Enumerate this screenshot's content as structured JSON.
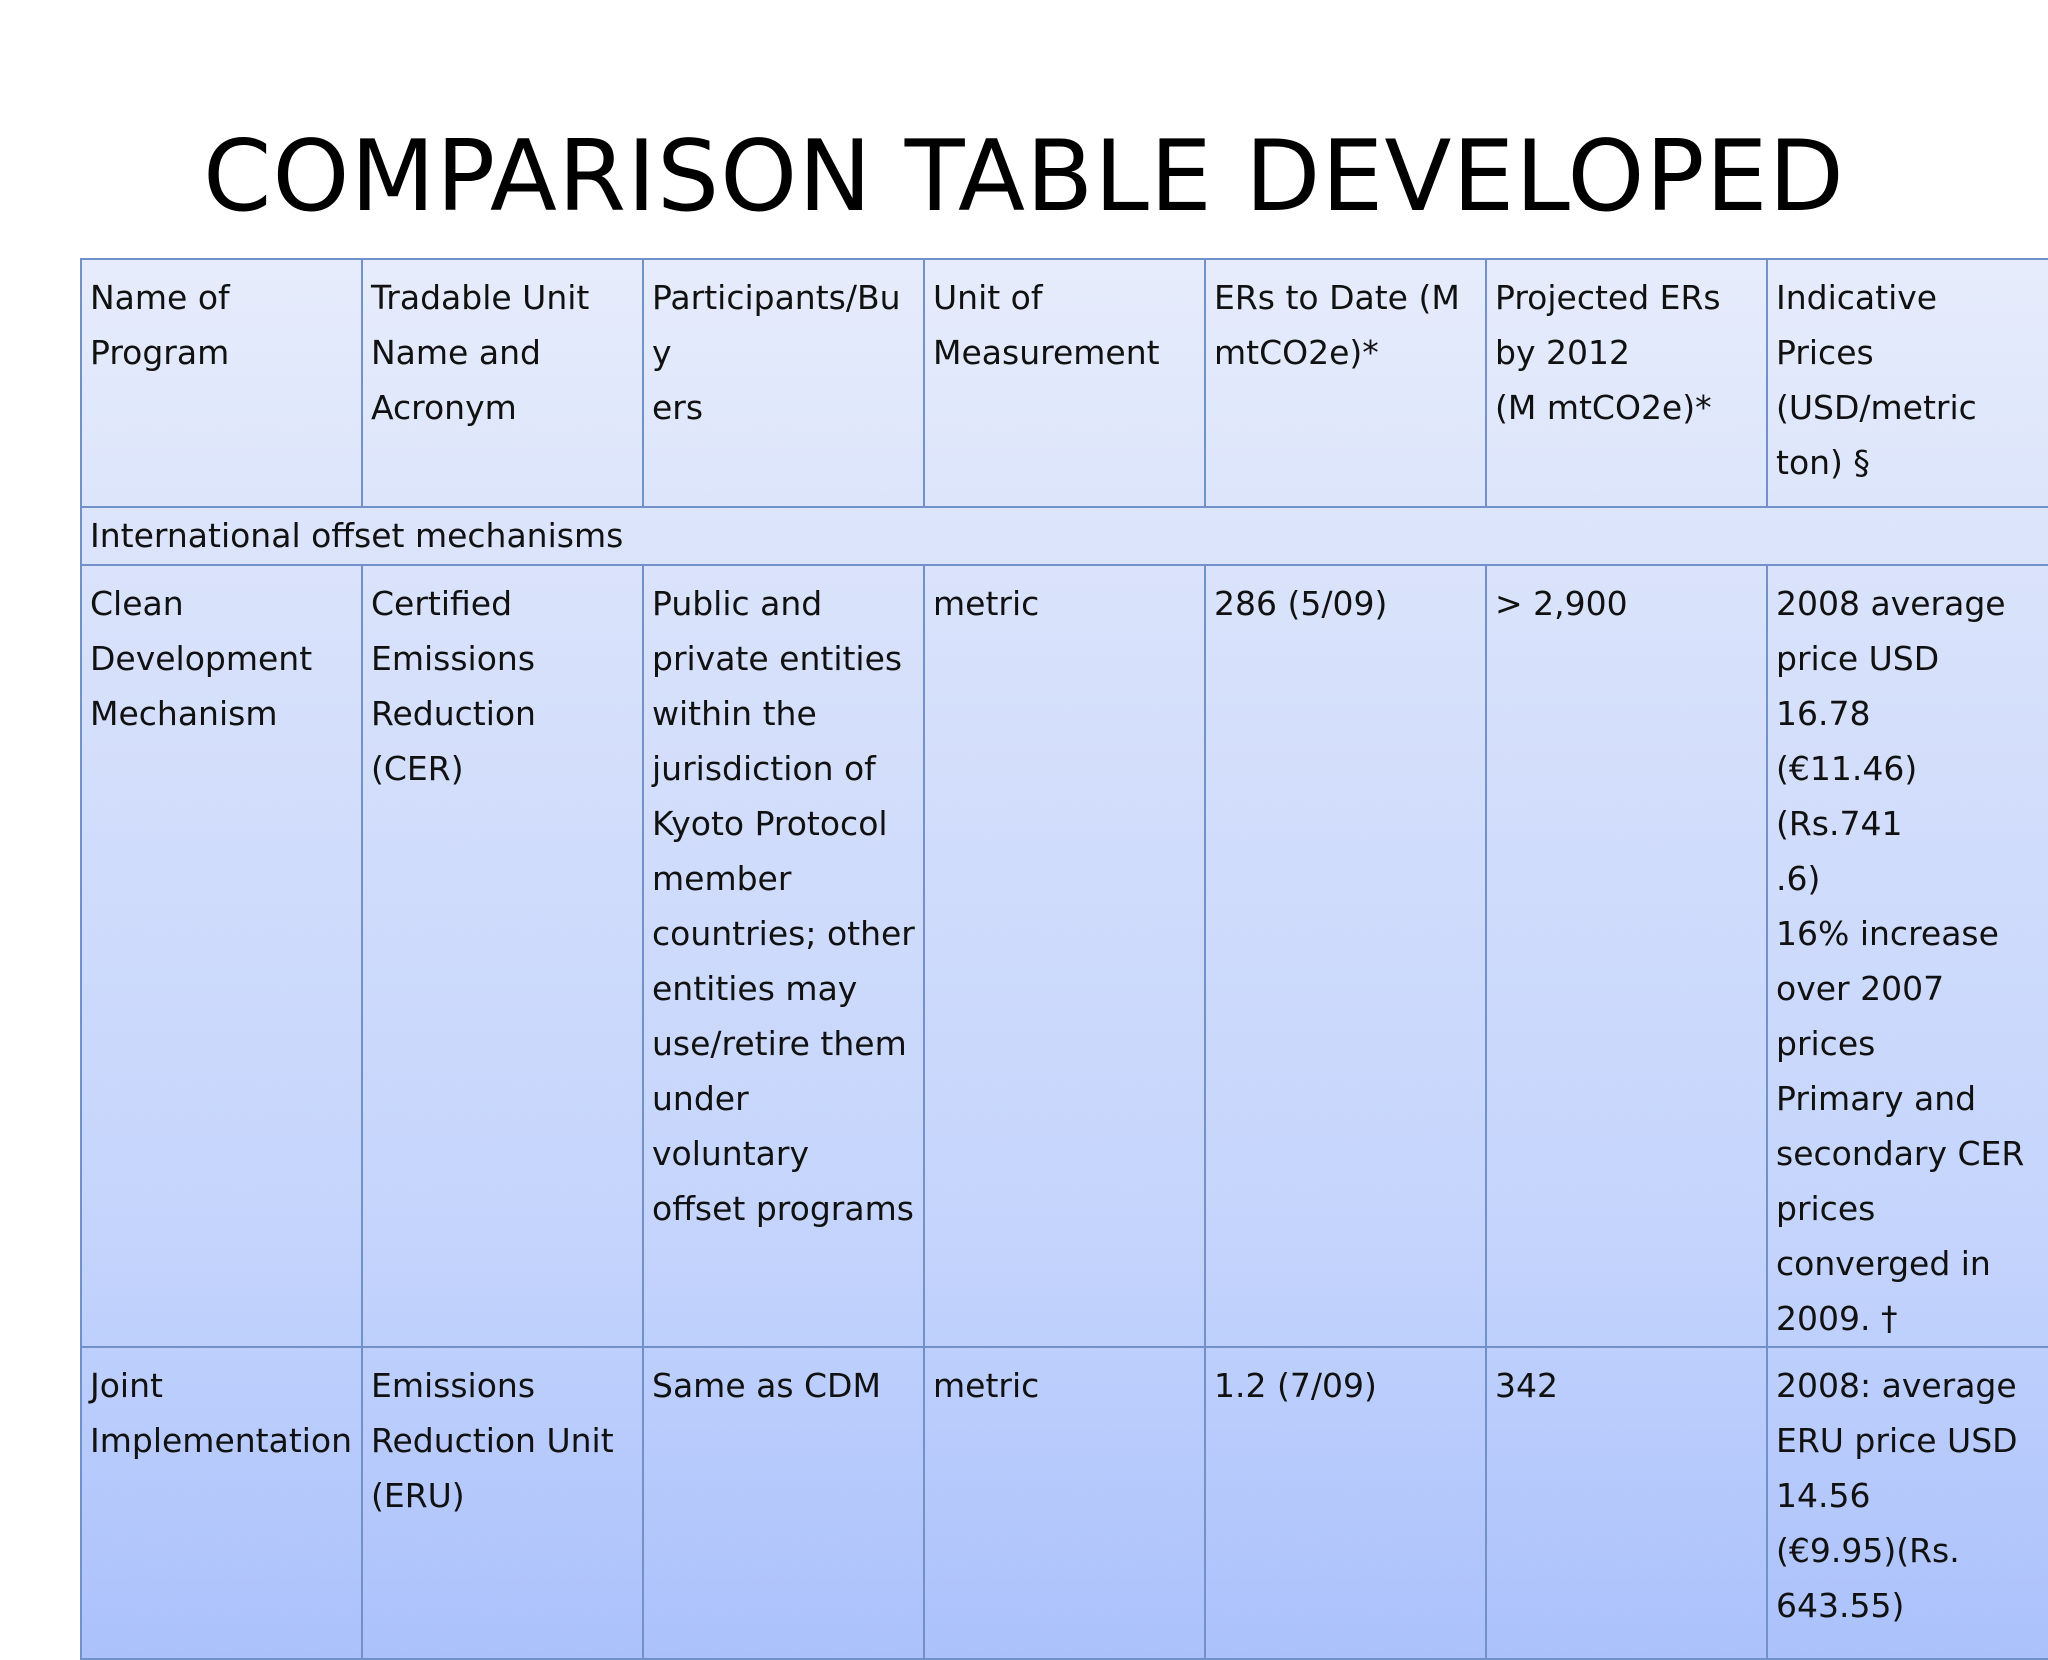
{
  "title": "COMPARISON TABLE DEVELOPED",
  "table": {
    "headers": [
      "Name of\nProgram",
      "Tradable Unit\nName and\nAcronym",
      "Participants/Buy\ners",
      "Unit of\nMeasurement",
      "ERs to Date (M\nmtCO2e)*",
      "Projected ERs\nby 2012\n(M  mtCO2e)*",
      "Indicative Prices\n(USD/metric\nton) §"
    ],
    "section": "International offset mechanisms",
    "rows": [
      [
        "Clean\nDevelopment\nMechanism",
        "Certified\nEmissions\nReduction (CER)",
        "Public and\nprivate entities\nwithin the\njurisdiction of\nKyoto Protocol\nmember\ncountries; other\nentities may\nuse/retire them\nunder voluntary\noffset programs",
        "metric",
        "286 (5/09)",
        "> 2,900",
        "2008 average\nprice USD 16.78\n(€11.46) (Rs.741\n.6)\n16% increase\nover 2007\nprices\nPrimary and\nsecondary CER\nprices\nconverged in\n2009. †"
      ],
      [
        "Joint\nImplementation",
        "Emissions\nReduction Unit\n(ERU)",
        "Same as CDM",
        "metric",
        "1.2 (7/09)",
        "342",
        "2008: average\nERU price USD\n14.56\n(€9.95)(Rs.\n643.55)"
      ]
    ]
  }
}
